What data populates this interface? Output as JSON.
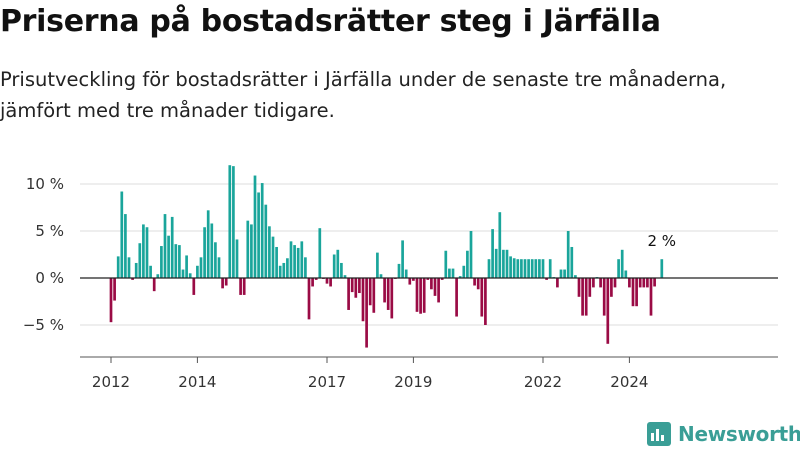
{
  "chart_data": {
    "type": "bar",
    "title": "Priserna på bostadsrätter steg i Järfälla",
    "subtitle": "Prisutveckling för bostadsrätter i Järfälla under de senaste tre månaderna, jämfört med tre månader tidigare.",
    "xlabel": "",
    "ylabel": "",
    "unit": "%",
    "x_start": "2012-01",
    "x_end": "2024-02",
    "x_ticks": [
      "2012",
      "2014",
      "2017",
      "2019",
      "2022",
      "2024"
    ],
    "y_ticks": [
      "10 %",
      "5 %",
      "0 %",
      "−5 %"
    ],
    "ylim": [
      -8,
      12.5
    ],
    "grid": true,
    "legend": "none",
    "positive_color": "#1aa59b",
    "negative_color": "#9a0b45",
    "last_label": "2 %",
    "values": [
      -4.7,
      -2.4,
      2.3,
      9.2,
      6.8,
      2.2,
      -0.2,
      1.6,
      3.7,
      5.7,
      5.4,
      1.3,
      -1.4,
      0.4,
      3.4,
      6.8,
      4.5,
      6.5,
      3.6,
      3.5,
      0.9,
      2.4,
      0.5,
      -1.8,
      1.3,
      2.2,
      5.4,
      7.2,
      5.8,
      3.8,
      2.2,
      -1.1,
      -0.8,
      12.0,
      11.9,
      4.1,
      -1.8,
      -1.8,
      6.1,
      5.7,
      10.9,
      9.1,
      10.1,
      7.8,
      5.5,
      4.4,
      3.3,
      1.3,
      1.6,
      2.1,
      3.9,
      3.5,
      3.2,
      3.9,
      2.2,
      -4.4,
      -0.9,
      -0.2,
      5.3,
      -0.1,
      -0.6,
      -0.9,
      2.5,
      3.0,
      1.6,
      0.3,
      -3.4,
      -1.5,
      -2.1,
      -1.6,
      -4.6,
      -7.4,
      -2.9,
      -3.7,
      2.7,
      0.4,
      -2.6,
      -3.4,
      -4.3,
      -0.1,
      1.5,
      4.0,
      0.9,
      -0.7,
      -0.3,
      -3.6,
      -3.8,
      -3.7,
      -0.2,
      -1.2,
      -1.9,
      -2.6,
      -0.2,
      2.9,
      1.0,
      1.0,
      -4.1,
      0.2,
      1.3,
      2.9,
      5.0,
      -0.8,
      -1.2,
      -4.1,
      -5.0,
      2.0,
      5.2,
      3.1,
      7.0,
      3.0,
      3.0,
      2.3,
      2.1,
      2.0,
      2.0,
      2.0,
      2.0,
      2.0,
      2.0,
      2.0,
      2.0,
      -0.2,
      2.0,
      0.1,
      -1.0,
      0.9,
      0.9,
      5.0,
      3.3,
      0.3,
      -2.0,
      -4.0,
      -4.0,
      -2.0,
      -1.0,
      0.1,
      -1.0,
      -4.0,
      -7.0,
      -2.0,
      -1.0,
      2.0,
      3.0,
      0.8,
      -1.0,
      -3.0,
      -3.0,
      -1.0,
      -1.0,
      -1.0,
      -4.0,
      -0.9,
      0.0,
      2.0
    ]
  },
  "branding": {
    "logo_text": "Newsworthy",
    "logo_icon": "bar-chart-icon",
    "logo_color": "#3a9e96"
  }
}
